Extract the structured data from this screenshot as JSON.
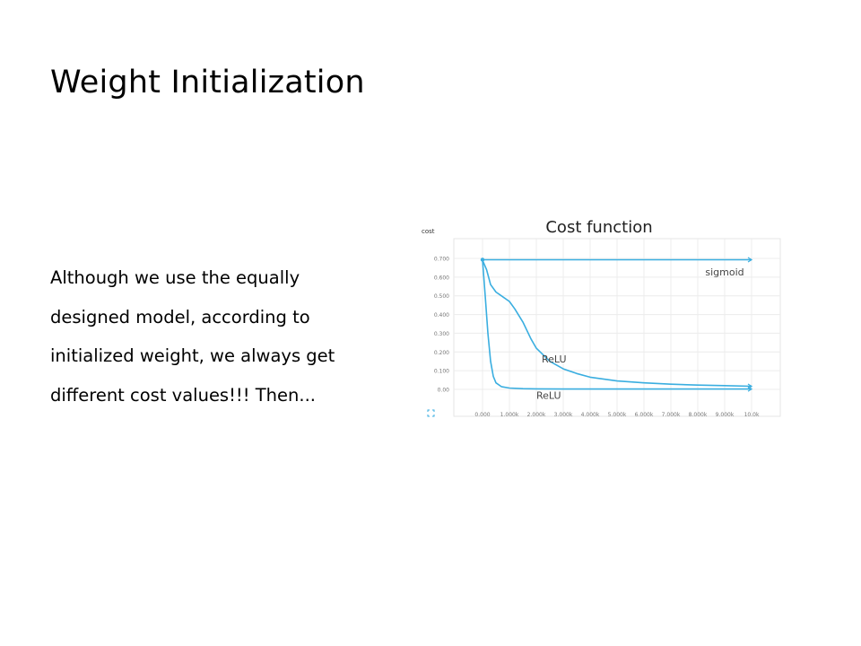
{
  "slide": {
    "title": "Weight Initialization",
    "body_lines": [
      "Although we use the equally",
      "designed model, according to",
      "initialized weight, we always get",
      "different cost values!!! Then..."
    ]
  },
  "chart_data": {
    "type": "line",
    "title": "Cost function",
    "ylabel": "cost",
    "xlabel": "",
    "xlim": [
      0,
      10000
    ],
    "ylim": [
      0,
      0.7
    ],
    "grid": true,
    "x_tick_labels": [
      "0.000",
      "1.000k",
      "2.000k",
      "3.000k",
      "4.000k",
      "5.000k",
      "6.000k",
      "7.000k",
      "8.000k",
      "9.000k",
      "10.0k"
    ],
    "y_tick_labels": [
      "0.00",
      "0.100",
      "0.200",
      "0.300",
      "0.400",
      "0.500",
      "0.600",
      "0.700"
    ],
    "line_color": "#3aaee0",
    "series": [
      {
        "name": "sigmoid",
        "x": [
          0,
          500,
          1000,
          2000,
          4000,
          6000,
          8000,
          10000
        ],
        "y": [
          0.693,
          0.693,
          0.693,
          0.693,
          0.693,
          0.693,
          0.693,
          0.693
        ]
      },
      {
        "name": "ReLU",
        "x": [
          0,
          150,
          300,
          500,
          700,
          1000,
          1200,
          1500,
          1800,
          2000,
          2500,
          3000,
          3500,
          4000,
          5000,
          6000,
          7000,
          8000,
          9000,
          10000
        ],
        "y": [
          0.69,
          0.64,
          0.56,
          0.52,
          0.5,
          0.47,
          0.43,
          0.36,
          0.27,
          0.22,
          0.15,
          0.11,
          0.085,
          0.065,
          0.045,
          0.035,
          0.028,
          0.023,
          0.02,
          0.017
        ]
      },
      {
        "name": "ReLU",
        "x": [
          0,
          100,
          200,
          300,
          400,
          500,
          700,
          1000,
          1500,
          2000,
          3000,
          5000,
          10000
        ],
        "y": [
          0.69,
          0.5,
          0.3,
          0.15,
          0.07,
          0.035,
          0.015,
          0.007,
          0.004,
          0.003,
          0.002,
          0.002,
          0.002
        ]
      }
    ]
  }
}
